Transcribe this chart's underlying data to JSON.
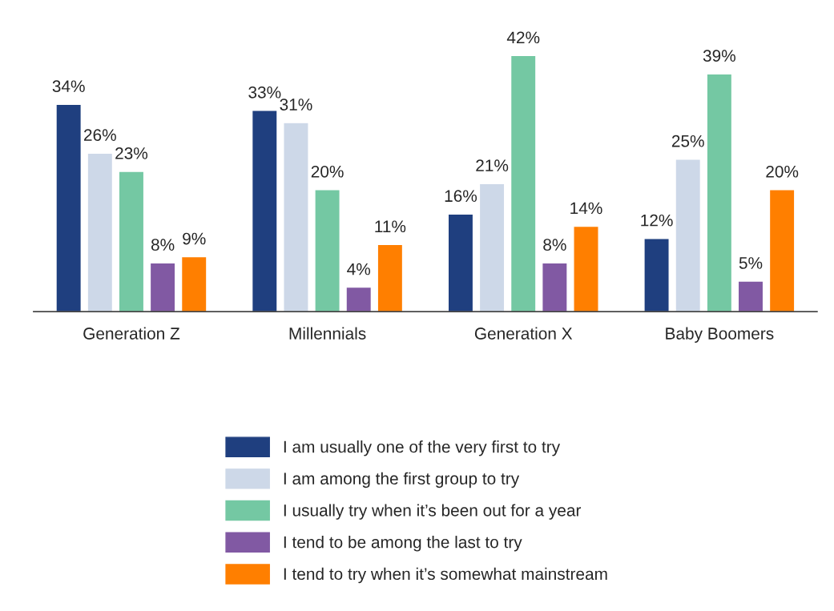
{
  "chart_data": {
    "type": "bar",
    "categories": [
      "Generation Z",
      "Millennials",
      "Generation X",
      "Baby Boomers"
    ],
    "series": [
      {
        "name": "I am usually one of the very first to try",
        "color": "#1f3f7f",
        "values": [
          34,
          33,
          16,
          12
        ],
        "value_labels": [
          "34%",
          "33%",
          "16%",
          "12%"
        ]
      },
      {
        "name": "I am among the first group to try",
        "color": "#cdd8e8",
        "values": [
          26,
          31,
          21,
          25
        ],
        "value_labels": [
          "26%",
          "31%",
          "21%",
          "25%"
        ]
      },
      {
        "name": "I usually try when it’s been out for a year",
        "color": "#74c8a3",
        "values": [
          23,
          20,
          42,
          39
        ],
        "value_labels": [
          "23%",
          "20%",
          "42%",
          "39%"
        ]
      },
      {
        "name": "I tend to be among the last to try",
        "color": "#8159a3",
        "values": [
          8,
          4,
          8,
          5
        ],
        "value_labels": [
          "8%",
          "4%",
          "8%",
          "5%"
        ]
      },
      {
        "name": "I tend to try when it’s somewhat mainstream",
        "color": "#ff7f00",
        "values": [
          9,
          11,
          14,
          20
        ],
        "value_labels": [
          "9%",
          "11%",
          "14%",
          "20%"
        ]
      }
    ],
    "legend": "bottom",
    "grid": false
  }
}
